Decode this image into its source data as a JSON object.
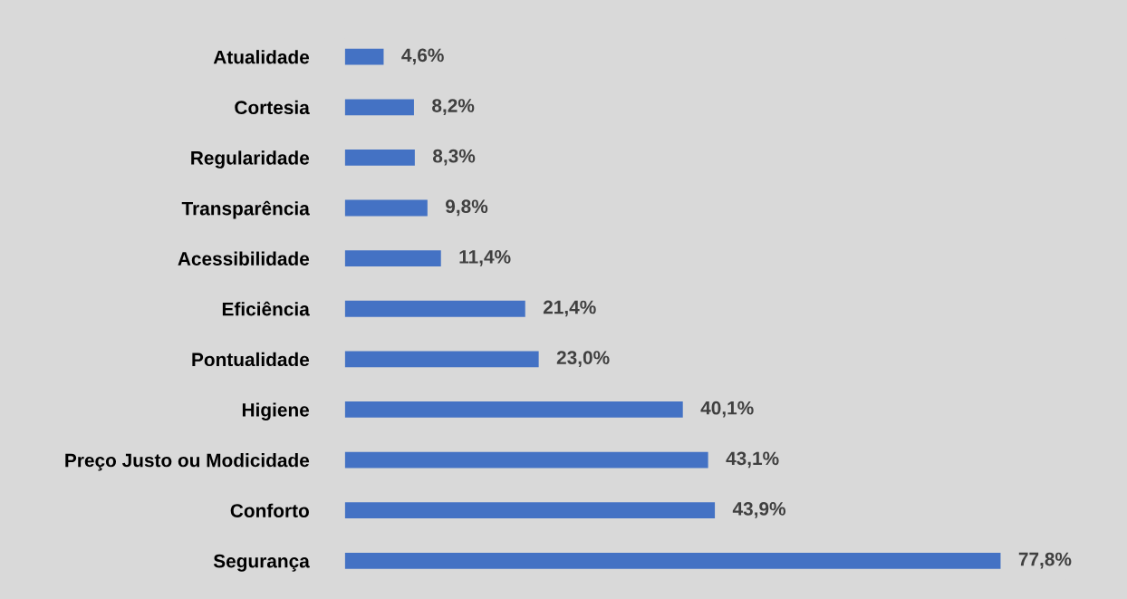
{
  "chart_data": {
    "type": "bar",
    "orientation": "horizontal",
    "categories": [
      "Atualidade",
      "Cortesia",
      "Regularidade",
      "Transparência",
      "Acessibilidade",
      "Eficiência",
      "Pontualidade",
      "Higiene",
      "Preço Justo ou Modicidade",
      "Conforto",
      "Segurança"
    ],
    "values": [
      4.6,
      8.2,
      8.3,
      9.8,
      11.4,
      21.4,
      23.0,
      40.1,
      43.1,
      43.9,
      77.8
    ],
    "value_labels": [
      "4,6%",
      "8,2%",
      "8,3%",
      "9,8%",
      "11,4%",
      "21,4%",
      "23,0%",
      "40,1%",
      "43,1%",
      "43,9%",
      "77,8%"
    ],
    "color": "#4472c4",
    "tick_labels": "y",
    "grid": false,
    "legend": false
  }
}
